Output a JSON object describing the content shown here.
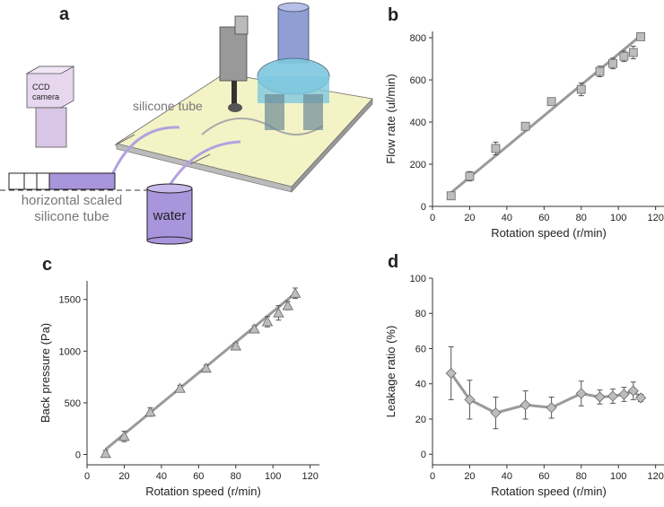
{
  "figure_a": {
    "label": "a",
    "camera": [
      "CCD",
      "camera"
    ],
    "tube": "silicone tube",
    "scaled_tube": [
      "horizontal scaled",
      "silicone tube"
    ],
    "water": "water"
  },
  "chart_data": [
    {
      "type": "scatter",
      "label": "b",
      "x_label": "Rotation speed (r/min)",
      "y_label": "Flow rate (ul/min)",
      "x": [
        10,
        20,
        34,
        50,
        64,
        80,
        90,
        97,
        103,
        108,
        112
      ],
      "values": [
        50,
        143,
        275,
        380,
        497,
        555,
        640,
        678,
        712,
        730,
        805
      ],
      "errors": [
        12,
        22,
        30,
        16,
        18,
        30,
        25,
        25,
        25,
        30,
        15
      ],
      "fit": {
        "x": [
          10,
          112
        ],
        "values": [
          65,
          810
        ]
      },
      "xlim": [
        0,
        125
      ],
      "ylim": [
        0,
        830
      ],
      "xticks": [
        0,
        20,
        40,
        60,
        80,
        100,
        120
      ],
      "yticks": [
        0,
        200,
        400,
        600,
        800
      ],
      "color": "#bdbdbd",
      "line_color": "#9a9a9a",
      "marker": "square"
    },
    {
      "type": "scatter",
      "label": "c",
      "x_label": "Rotation speed (r/min)",
      "y_label": "Back pressure (Pa)",
      "x": [
        10,
        20,
        34,
        50,
        64,
        80,
        90,
        97,
        103,
        108,
        112
      ],
      "values": [
        10,
        175,
        410,
        640,
        835,
        1050,
        1215,
        1285,
        1370,
        1440,
        1560
      ],
      "errors": [
        30,
        50,
        40,
        30,
        30,
        30,
        30,
        50,
        70,
        40,
        50
      ],
      "fit": {
        "x": [
          10,
          112
        ],
        "values": [
          50,
          1560
        ]
      },
      "xlim": [
        0,
        125
      ],
      "ylim": [
        -100,
        1680
      ],
      "xticks": [
        0,
        20,
        40,
        60,
        80,
        100,
        120
      ],
      "yticks": [
        0,
        500,
        1000,
        1500
      ],
      "color": "#bdbdbd",
      "line_color": "#9a9a9a",
      "marker": "triangle"
    },
    {
      "type": "line",
      "label": "d",
      "x_label": "Rotation speed (r/min)",
      "y_label": "Leakage ratio (%)",
      "x": [
        10,
        20,
        34,
        50,
        64,
        80,
        90,
        97,
        103,
        108,
        112
      ],
      "values": [
        46,
        31,
        23.5,
        28,
        26.5,
        34.5,
        32.5,
        33,
        34,
        36,
        32
      ],
      "errors": [
        15,
        11,
        9,
        8,
        6,
        7,
        4,
        4,
        4,
        5,
        2
      ],
      "xlim": [
        0,
        125
      ],
      "ylim": [
        -6,
        100
      ],
      "xticks": [
        0,
        20,
        40,
        60,
        80,
        100,
        120
      ],
      "yticks": [
        0,
        20,
        40,
        60,
        80,
        100
      ],
      "color": "#bdbdbd",
      "line_color": "#9a9a9a",
      "marker": "diamond"
    }
  ]
}
